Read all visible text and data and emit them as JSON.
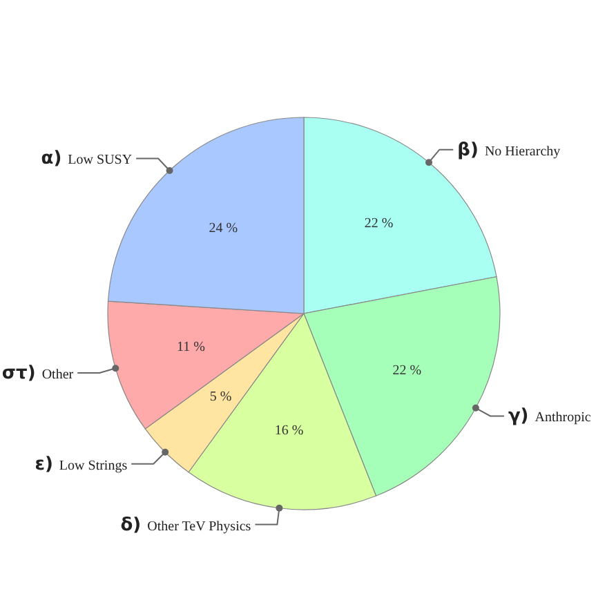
{
  "chart_data": {
    "type": "pie",
    "categories": [
      "β) No Hierarchy",
      "γ) Anthropic",
      "δ) Other TeV Physics",
      "ε) Low Strings",
      "στ) Other",
      "α) Low SUSY"
    ],
    "values": [
      22,
      22,
      16,
      5,
      11,
      24
    ],
    "colors": [
      "#a8fff2",
      "#a6ffb8",
      "#d8ffa0",
      "#ffe4a2",
      "#ffaaaa",
      "#a8c8ff"
    ],
    "value_labels": [
      "22 %",
      "22 %",
      "16 %",
      "5 %",
      "11 %",
      "24 %"
    ]
  }
}
